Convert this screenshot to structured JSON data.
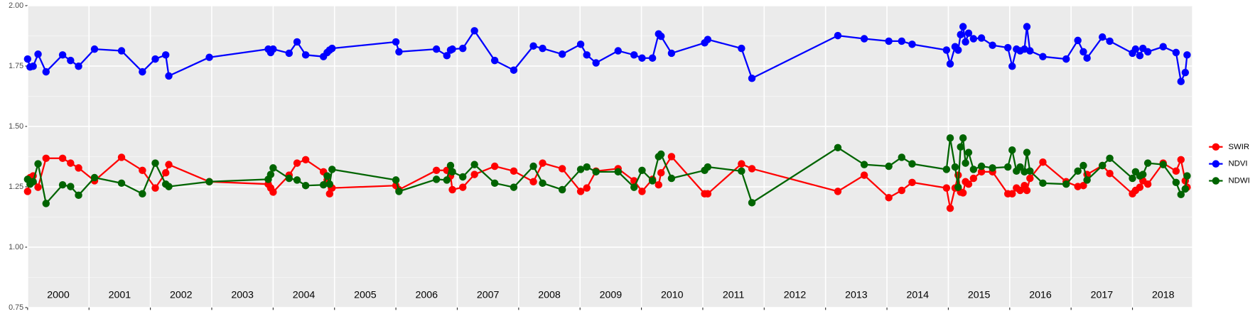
{
  "chart_data": {
    "type": "line",
    "xlim": [
      2000,
      2018.97
    ],
    "xticks": [
      2000,
      2001,
      2002,
      2003,
      2004,
      2005,
      2006,
      2007,
      2008,
      2009,
      2010,
      2011,
      2012,
      2013,
      2014,
      2015,
      2016,
      2017,
      2018
    ],
    "ylim": [
      0.75,
      2.0
    ],
    "yticks": [
      0.75,
      {
        "value": 1,
        "label": "1.00"
      },
      1.25,
      {
        "value": 1.5,
        "label": "1.50"
      },
      1.75,
      {
        "value": 2,
        "label": "2.00"
      }
    ],
    "year_labels": [
      {
        "value": 2000.5,
        "label": "2000"
      },
      {
        "value": 2001.5,
        "label": "2001"
      },
      {
        "value": 2002.5,
        "label": "2002"
      },
      {
        "value": 2003.5,
        "label": "2003"
      },
      {
        "value": 2004.5,
        "label": "2004"
      },
      {
        "value": 2005.5,
        "label": "2005"
      },
      {
        "value": 2006.5,
        "label": "2006"
      },
      {
        "value": 2007.5,
        "label": "2007"
      },
      {
        "value": 2008.5,
        "label": "2008"
      },
      {
        "value": 2009.5,
        "label": "2009"
      },
      {
        "value": 2010.5,
        "label": "2010"
      },
      {
        "value": 2011.5,
        "label": "2011"
      },
      {
        "value": 2012.5,
        "label": "2012"
      },
      {
        "value": 2013.5,
        "label": "2013"
      },
      {
        "value": 2014.5,
        "label": "2014"
      },
      {
        "value": 2015.5,
        "label": "2015"
      },
      {
        "value": 2016.5,
        "label": "2016"
      },
      {
        "value": 2017.5,
        "label": "2017"
      },
      {
        "value": 2018.5,
        "label": "2018"
      }
    ],
    "grid": true,
    "legend": "right",
    "x": [
      2000.0,
      2000.04,
      2000.09,
      2000.17,
      2000.3,
      2000.57,
      2000.7,
      2000.83,
      2001.09,
      2001.53,
      2001.87,
      2002.08,
      2002.25,
      2002.3,
      2002.96,
      2003.92,
      2003.96,
      2004.0,
      2004.26,
      2004.39,
      2004.53,
      2004.82,
      2004.88,
      2004.92,
      2004.96,
      2006.0,
      2006.05,
      2006.66,
      2006.83,
      2006.89,
      2006.92,
      2007.09,
      2007.28,
      2007.61,
      2007.92,
      2008.24,
      2008.39,
      2008.71,
      2009.01,
      2009.11,
      2009.26,
      2009.62,
      2009.88,
      2010.01,
      2010.18,
      2010.28,
      2010.32,
      2010.49,
      2011.03,
      2011.08,
      2011.63,
      2011.8,
      2013.2,
      2013.63,
      2014.03,
      2014.24,
      2014.41,
      2014.97,
      2015.03,
      2015.11,
      2015.16,
      2015.2,
      2015.24,
      2015.28,
      2015.33,
      2015.41,
      2015.54,
      2015.72,
      2015.97,
      2016.04,
      2016.11,
      2016.17,
      2016.24,
      2016.28,
      2016.33,
      2016.54,
      2016.92,
      2017.11,
      2017.2,
      2017.26,
      2017.51,
      2017.63,
      2018.0,
      2018.05,
      2018.12,
      2018.17,
      2018.25,
      2018.5,
      2018.71,
      2018.79,
      2018.86,
      2018.89
    ],
    "series": [
      {
        "name": "SWIR",
        "color": "#ff0000",
        "values": [
          1.231,
          1.288,
          1.295,
          1.248,
          1.368,
          1.368,
          1.348,
          1.328,
          1.275,
          1.372,
          1.318,
          1.245,
          1.308,
          1.342,
          1.271,
          1.261,
          1.245,
          1.228,
          1.298,
          1.348,
          1.362,
          1.312,
          1.278,
          1.221,
          1.245,
          1.255,
          1.238,
          1.318,
          1.318,
          1.295,
          1.238,
          1.248,
          1.301,
          1.335,
          1.315,
          1.271,
          1.348,
          1.325,
          1.231,
          1.245,
          1.315,
          1.325,
          1.275,
          1.231,
          1.281,
          1.258,
          1.308,
          1.375,
          1.221,
          1.221,
          1.345,
          1.325,
          1.231,
          1.298,
          1.205,
          1.235,
          1.268,
          1.245,
          1.161,
          1.245,
          1.298,
          1.228,
          1.225,
          1.271,
          1.261,
          1.285,
          1.312,
          1.312,
          1.221,
          1.221,
          1.245,
          1.235,
          1.255,
          1.235,
          1.285,
          1.352,
          1.271,
          1.251,
          1.255,
          1.301,
          1.338,
          1.305,
          1.221,
          1.235,
          1.248,
          1.275,
          1.261,
          1.348,
          1.315,
          1.362,
          1.275,
          1.248
        ]
      },
      {
        "name": "NDVI",
        "color": "#0000ff",
        "values": [
          1.779,
          1.746,
          1.749,
          1.799,
          1.726,
          1.796,
          1.773,
          1.749,
          1.82,
          1.813,
          1.726,
          1.779,
          1.796,
          1.709,
          1.786,
          1.82,
          1.806,
          1.82,
          1.803,
          1.85,
          1.796,
          1.789,
          1.806,
          1.816,
          1.823,
          1.85,
          1.809,
          1.82,
          1.793,
          1.816,
          1.82,
          1.823,
          1.896,
          1.773,
          1.733,
          1.833,
          1.823,
          1.799,
          1.84,
          1.796,
          1.763,
          1.813,
          1.796,
          1.783,
          1.783,
          1.883,
          1.873,
          1.803,
          1.846,
          1.86,
          1.823,
          1.699,
          1.876,
          1.863,
          1.853,
          1.853,
          1.84,
          1.816,
          1.759,
          1.83,
          1.816,
          1.88,
          1.913,
          1.85,
          1.886,
          1.863,
          1.866,
          1.836,
          1.826,
          1.749,
          1.82,
          1.813,
          1.82,
          1.913,
          1.813,
          1.789,
          1.779,
          1.856,
          1.809,
          1.783,
          1.87,
          1.853,
          1.803,
          1.82,
          1.793,
          1.823,
          1.809,
          1.83,
          1.806,
          1.686,
          1.723,
          1.796
        ]
      },
      {
        "name": "NDWI",
        "color": "#006400",
        "values": [
          1.281,
          1.261,
          1.271,
          1.345,
          1.181,
          1.258,
          1.251,
          1.215,
          1.288,
          1.265,
          1.221,
          1.348,
          1.261,
          1.251,
          1.271,
          1.281,
          1.301,
          1.328,
          1.285,
          1.278,
          1.255,
          1.258,
          1.295,
          1.261,
          1.322,
          1.278,
          1.231,
          1.281,
          1.278,
          1.338,
          1.312,
          1.291,
          1.342,
          1.265,
          1.248,
          1.335,
          1.265,
          1.238,
          1.322,
          1.332,
          1.312,
          1.312,
          1.248,
          1.318,
          1.275,
          1.375,
          1.385,
          1.285,
          1.318,
          1.332,
          1.315,
          1.184,
          1.412,
          1.342,
          1.335,
          1.372,
          1.345,
          1.322,
          1.452,
          1.332,
          1.248,
          1.415,
          1.452,
          1.348,
          1.392,
          1.322,
          1.335,
          1.328,
          1.332,
          1.402,
          1.315,
          1.332,
          1.312,
          1.392,
          1.315,
          1.265,
          1.261,
          1.315,
          1.338,
          1.278,
          1.338,
          1.368,
          1.285,
          1.312,
          1.295,
          1.301,
          1.348,
          1.342,
          1.268,
          1.218,
          1.241,
          1.295
        ]
      }
    ]
  }
}
